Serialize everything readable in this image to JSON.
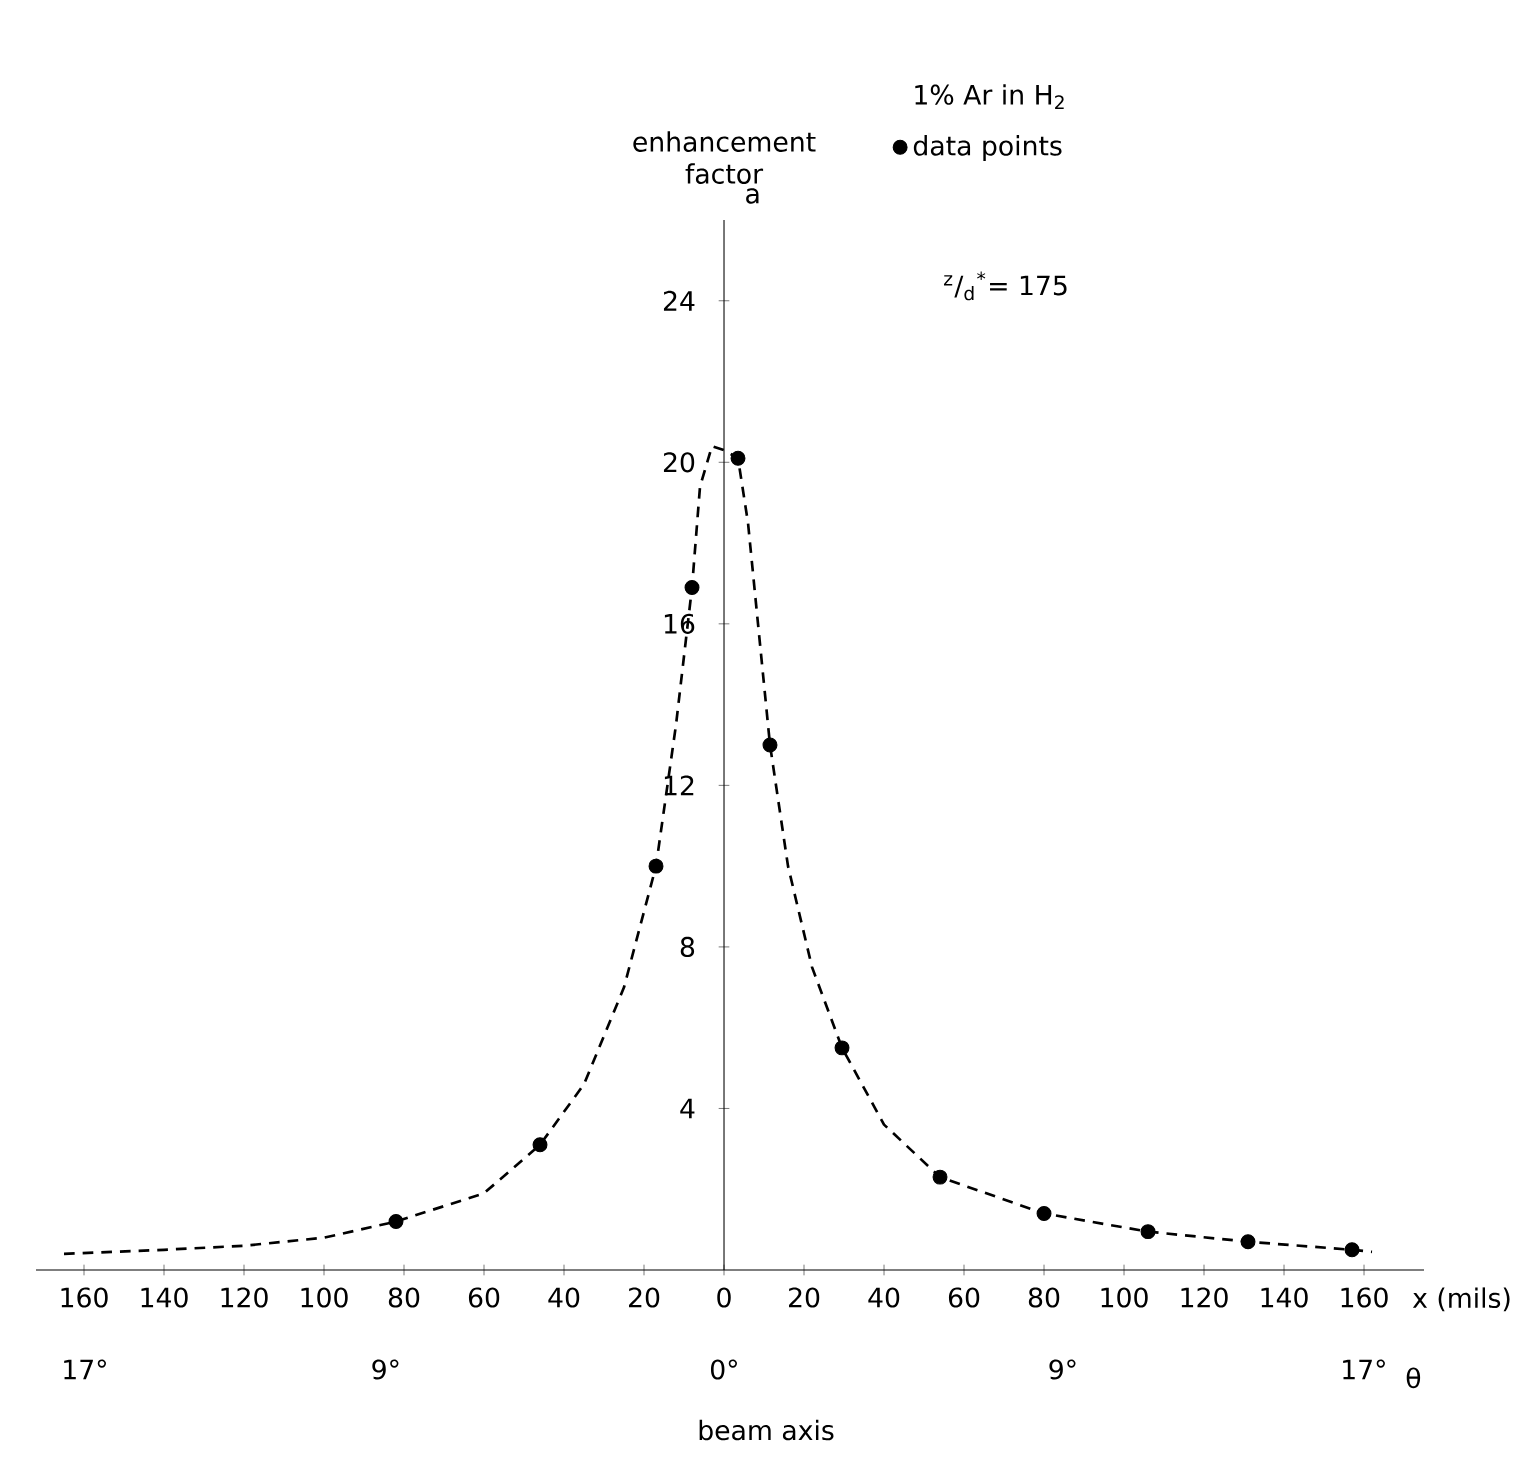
{
  "chart_data": {
    "type": "line",
    "ylabel": "enhancement factor",
    "xlabel": "x (mils)",
    "x2label": "θ",
    "legend_title": "1% Ar in H$_{2}$",
    "annotations": [
      "a",
      "$^{z}$/$_{d}$$^{*}$= 175",
      "beam axis"
    ],
    "xlim": [
      -172,
      175
    ],
    "ylim": [
      0,
      26
    ],
    "xticks": [
      {
        "value": -160,
        "label": "160"
      },
      {
        "value": -140,
        "label": "140"
      },
      {
        "value": -120,
        "label": "120"
      },
      {
        "value": -100,
        "label": "100"
      },
      {
        "value": -80,
        "label": "80"
      },
      {
        "value": -60,
        "label": "60"
      },
      {
        "value": -40,
        "label": "40"
      },
      {
        "value": -20,
        "label": "20"
      },
      0,
      20,
      40,
      60,
      80,
      100,
      120,
      140,
      160
    ],
    "x2lim": [
      -18.3,
      18.6
    ],
    "x2ticks": [
      {
        "value": -17,
        "label": "17°"
      },
      {
        "value": -9,
        "label": "9°"
      },
      {
        "value": 0,
        "label": "0°"
      },
      {
        "value": 9,
        "label": "9°"
      },
      {
        "value": 17,
        "label": "17°"
      }
    ],
    "yticks": [
      4,
      8,
      12,
      16,
      20,
      24
    ],
    "legend": "top right",
    "series": [
      {
        "name": "data points",
        "type": "scatter",
        "marker": "circle",
        "color": "#000000",
        "x": [
          -82,
          -46,
          -17,
          -8,
          3.5,
          11.5,
          29.5,
          54,
          80,
          106,
          131,
          157
        ],
        "values": [
          1.2,
          3.1,
          10,
          16.9,
          20.1,
          13,
          5.5,
          2.3,
          1.4,
          0.95,
          0.7,
          0.5
        ]
      },
      {
        "line_style": "dashed",
        "marker": "none",
        "color": "#000000",
        "x": [
          -165,
          -140,
          -120,
          -100,
          -82,
          -60,
          -46,
          -35,
          -25,
          -17,
          -12,
          -8,
          -6,
          -3,
          0,
          3.5,
          6,
          9,
          11.5,
          16,
          22,
          29.5,
          40,
          54,
          80,
          106,
          131,
          157,
          162
        ],
        "values": [
          0.4,
          0.5,
          0.6,
          0.8,
          1.2,
          1.9,
          3.1,
          4.6,
          7,
          10,
          13.5,
          16.9,
          19.4,
          20.4,
          20.3,
          20.1,
          18.5,
          15.5,
          13,
          10,
          7.5,
          5.5,
          3.6,
          2.3,
          1.4,
          0.95,
          0.7,
          0.5,
          0.45
        ]
      }
    ]
  }
}
